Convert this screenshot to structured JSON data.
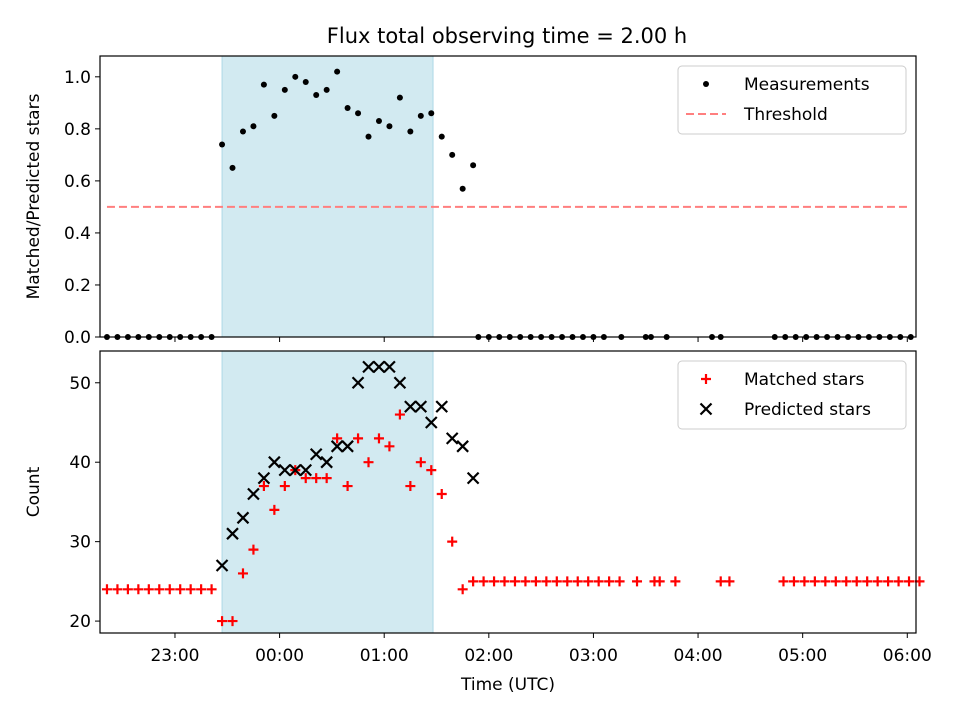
{
  "figure_title": "Flux total observing time = 2.00 h",
  "shade_color": "#add8e6",
  "chart_data": [
    {
      "type": "scatter",
      "panel": "top",
      "xlabel": "",
      "ylabel": "Matched/Predicted stars",
      "xlim": [
        "22:17",
        "06:05"
      ],
      "ylim": [
        0,
        1.08
      ],
      "yticks": [
        "0.0",
        "0.2",
        "0.4",
        "0.6",
        "0.8",
        "1.0"
      ],
      "shaded_span": [
        "23:27",
        "01:28"
      ],
      "legend_position": "upper right",
      "grid": false,
      "series": [
        {
          "name": "Measurements",
          "marker": "dot",
          "color": "#000000",
          "points": [
            [
              "22:21",
              0
            ],
            [
              "22:27",
              0
            ],
            [
              "22:33",
              0
            ],
            [
              "22:39",
              0
            ],
            [
              "22:45",
              0
            ],
            [
              "22:51",
              0
            ],
            [
              "22:57",
              0
            ],
            [
              "23:03",
              0
            ],
            [
              "23:09",
              0
            ],
            [
              "23:15",
              0
            ],
            [
              "23:21",
              0
            ],
            [
              "23:27",
              0.74
            ],
            [
              "23:33",
              0.65
            ],
            [
              "23:39",
              0.79
            ],
            [
              "23:45",
              0.81
            ],
            [
              "23:51",
              0.97
            ],
            [
              "23:57",
              0.85
            ],
            [
              "00:03",
              0.95
            ],
            [
              "00:09",
              1.0
            ],
            [
              "00:15",
              0.98
            ],
            [
              "00:21",
              0.93
            ],
            [
              "00:27",
              0.95
            ],
            [
              "00:33",
              1.02
            ],
            [
              "00:39",
              0.88
            ],
            [
              "00:45",
              0.86
            ],
            [
              "00:51",
              0.77
            ],
            [
              "00:57",
              0.83
            ],
            [
              "01:03",
              0.81
            ],
            [
              "01:09",
              0.92
            ],
            [
              "01:15",
              0.79
            ],
            [
              "01:21",
              0.85
            ],
            [
              "01:27",
              0.86
            ],
            [
              "01:33",
              0.77
            ],
            [
              "01:39",
              0.7
            ],
            [
              "01:45",
              0.57
            ],
            [
              "01:51",
              0.66
            ],
            [
              "01:54",
              0
            ],
            [
              "02:00",
              0
            ],
            [
              "02:06",
              0
            ],
            [
              "02:12",
              0
            ],
            [
              "02:18",
              0
            ],
            [
              "02:24",
              0
            ],
            [
              "02:30",
              0
            ],
            [
              "02:36",
              0
            ],
            [
              "02:42",
              0
            ],
            [
              "02:48",
              0
            ],
            [
              "02:54",
              0
            ],
            [
              "03:00",
              0
            ],
            [
              "03:06",
              0
            ],
            [
              "03:16",
              0
            ],
            [
              "03:30",
              0
            ],
            [
              "03:33",
              0
            ],
            [
              "03:42",
              0
            ],
            [
              "04:08",
              0
            ],
            [
              "04:13",
              0
            ],
            [
              "04:44",
              0
            ],
            [
              "04:50",
              0
            ],
            [
              "04:56",
              0
            ],
            [
              "05:02",
              0
            ],
            [
              "05:08",
              0
            ],
            [
              "05:14",
              0
            ],
            [
              "05:20",
              0
            ],
            [
              "05:26",
              0
            ],
            [
              "05:32",
              0
            ],
            [
              "05:38",
              0
            ],
            [
              "05:44",
              0
            ],
            [
              "05:50",
              0
            ],
            [
              "05:56",
              0
            ],
            [
              "06:02",
              0
            ]
          ]
        },
        {
          "name": "Threshold",
          "marker": "dashed-line",
          "color": "#ff7f7f",
          "points": [
            [
              "22:21",
              0.5
            ],
            [
              "06:02",
              0.5
            ]
          ]
        }
      ]
    },
    {
      "type": "scatter",
      "panel": "bottom",
      "xlabel": "Time (UTC)",
      "ylabel": "Count",
      "xlim": [
        "22:17",
        "06:05"
      ],
      "ylim": [
        18.5,
        54.0
      ],
      "yticks": [
        "20",
        "30",
        "40",
        "50"
      ],
      "xticks": [
        "23:00",
        "00:00",
        "01:00",
        "02:00",
        "03:00",
        "04:00",
        "05:00",
        "06:00"
      ],
      "shaded_span": [
        "23:27",
        "01:28"
      ],
      "legend_position": "upper right",
      "grid": false,
      "series": [
        {
          "name": "Matched stars",
          "marker": "plus",
          "color": "#ff0000",
          "points": [
            [
              "22:21",
              24
            ],
            [
              "22:27",
              24
            ],
            [
              "22:33",
              24
            ],
            [
              "22:39",
              24
            ],
            [
              "22:45",
              24
            ],
            [
              "22:51",
              24
            ],
            [
              "22:57",
              24
            ],
            [
              "23:03",
              24
            ],
            [
              "23:09",
              24
            ],
            [
              "23:15",
              24
            ],
            [
              "23:21",
              24
            ],
            [
              "23:27",
              20
            ],
            [
              "23:33",
              20
            ],
            [
              "23:39",
              26
            ],
            [
              "23:45",
              29
            ],
            [
              "23:51",
              37
            ],
            [
              "23:57",
              34
            ],
            [
              "00:03",
              37
            ],
            [
              "00:09",
              39
            ],
            [
              "00:15",
              38
            ],
            [
              "00:21",
              38
            ],
            [
              "00:27",
              38
            ],
            [
              "00:33",
              43
            ],
            [
              "00:39",
              37
            ],
            [
              "00:45",
              43
            ],
            [
              "00:51",
              40
            ],
            [
              "00:57",
              43
            ],
            [
              "01:03",
              42
            ],
            [
              "01:09",
              46
            ],
            [
              "01:15",
              37
            ],
            [
              "01:21",
              40
            ],
            [
              "01:27",
              39
            ],
            [
              "01:33",
              36
            ],
            [
              "01:39",
              30
            ],
            [
              "01:45",
              24
            ],
            [
              "01:51",
              25
            ],
            [
              "01:57",
              25
            ],
            [
              "02:03",
              25
            ],
            [
              "02:09",
              25
            ],
            [
              "02:15",
              25
            ],
            [
              "02:21",
              25
            ],
            [
              "02:27",
              25
            ],
            [
              "02:33",
              25
            ],
            [
              "02:39",
              25
            ],
            [
              "02:45",
              25
            ],
            [
              "02:51",
              25
            ],
            [
              "02:57",
              25
            ],
            [
              "03:03",
              25
            ],
            [
              "03:09",
              25
            ],
            [
              "03:15",
              25
            ],
            [
              "03:25",
              25
            ],
            [
              "03:35",
              25
            ],
            [
              "03:38",
              25
            ],
            [
              "03:47",
              25
            ],
            [
              "04:13",
              25
            ],
            [
              "04:18",
              25
            ],
            [
              "04:49",
              25
            ],
            [
              "04:55",
              25
            ],
            [
              "05:01",
              25
            ],
            [
              "05:07",
              25
            ],
            [
              "05:13",
              25
            ],
            [
              "05:19",
              25
            ],
            [
              "05:25",
              25
            ],
            [
              "05:31",
              25
            ],
            [
              "05:37",
              25
            ],
            [
              "05:43",
              25
            ],
            [
              "05:49",
              25
            ],
            [
              "05:55",
              25
            ],
            [
              "06:01",
              25
            ],
            [
              "06:07",
              25
            ]
          ]
        },
        {
          "name": "Predicted stars",
          "marker": "x",
          "color": "#000000",
          "points": [
            [
              "23:27",
              27
            ],
            [
              "23:33",
              31
            ],
            [
              "23:39",
              33
            ],
            [
              "23:45",
              36
            ],
            [
              "23:51",
              38
            ],
            [
              "23:57",
              40
            ],
            [
              "00:03",
              39
            ],
            [
              "00:09",
              39
            ],
            [
              "00:15",
              39
            ],
            [
              "00:21",
              41
            ],
            [
              "00:27",
              40
            ],
            [
              "00:33",
              42
            ],
            [
              "00:39",
              42
            ],
            [
              "00:45",
              50
            ],
            [
              "00:51",
              52
            ],
            [
              "00:57",
              52
            ],
            [
              "01:03",
              52
            ],
            [
              "01:09",
              50
            ],
            [
              "01:15",
              47
            ],
            [
              "01:21",
              47
            ],
            [
              "01:27",
              45
            ],
            [
              "01:33",
              47
            ],
            [
              "01:39",
              43
            ],
            [
              "01:45",
              42
            ],
            [
              "01:51",
              38
            ]
          ]
        }
      ]
    }
  ]
}
